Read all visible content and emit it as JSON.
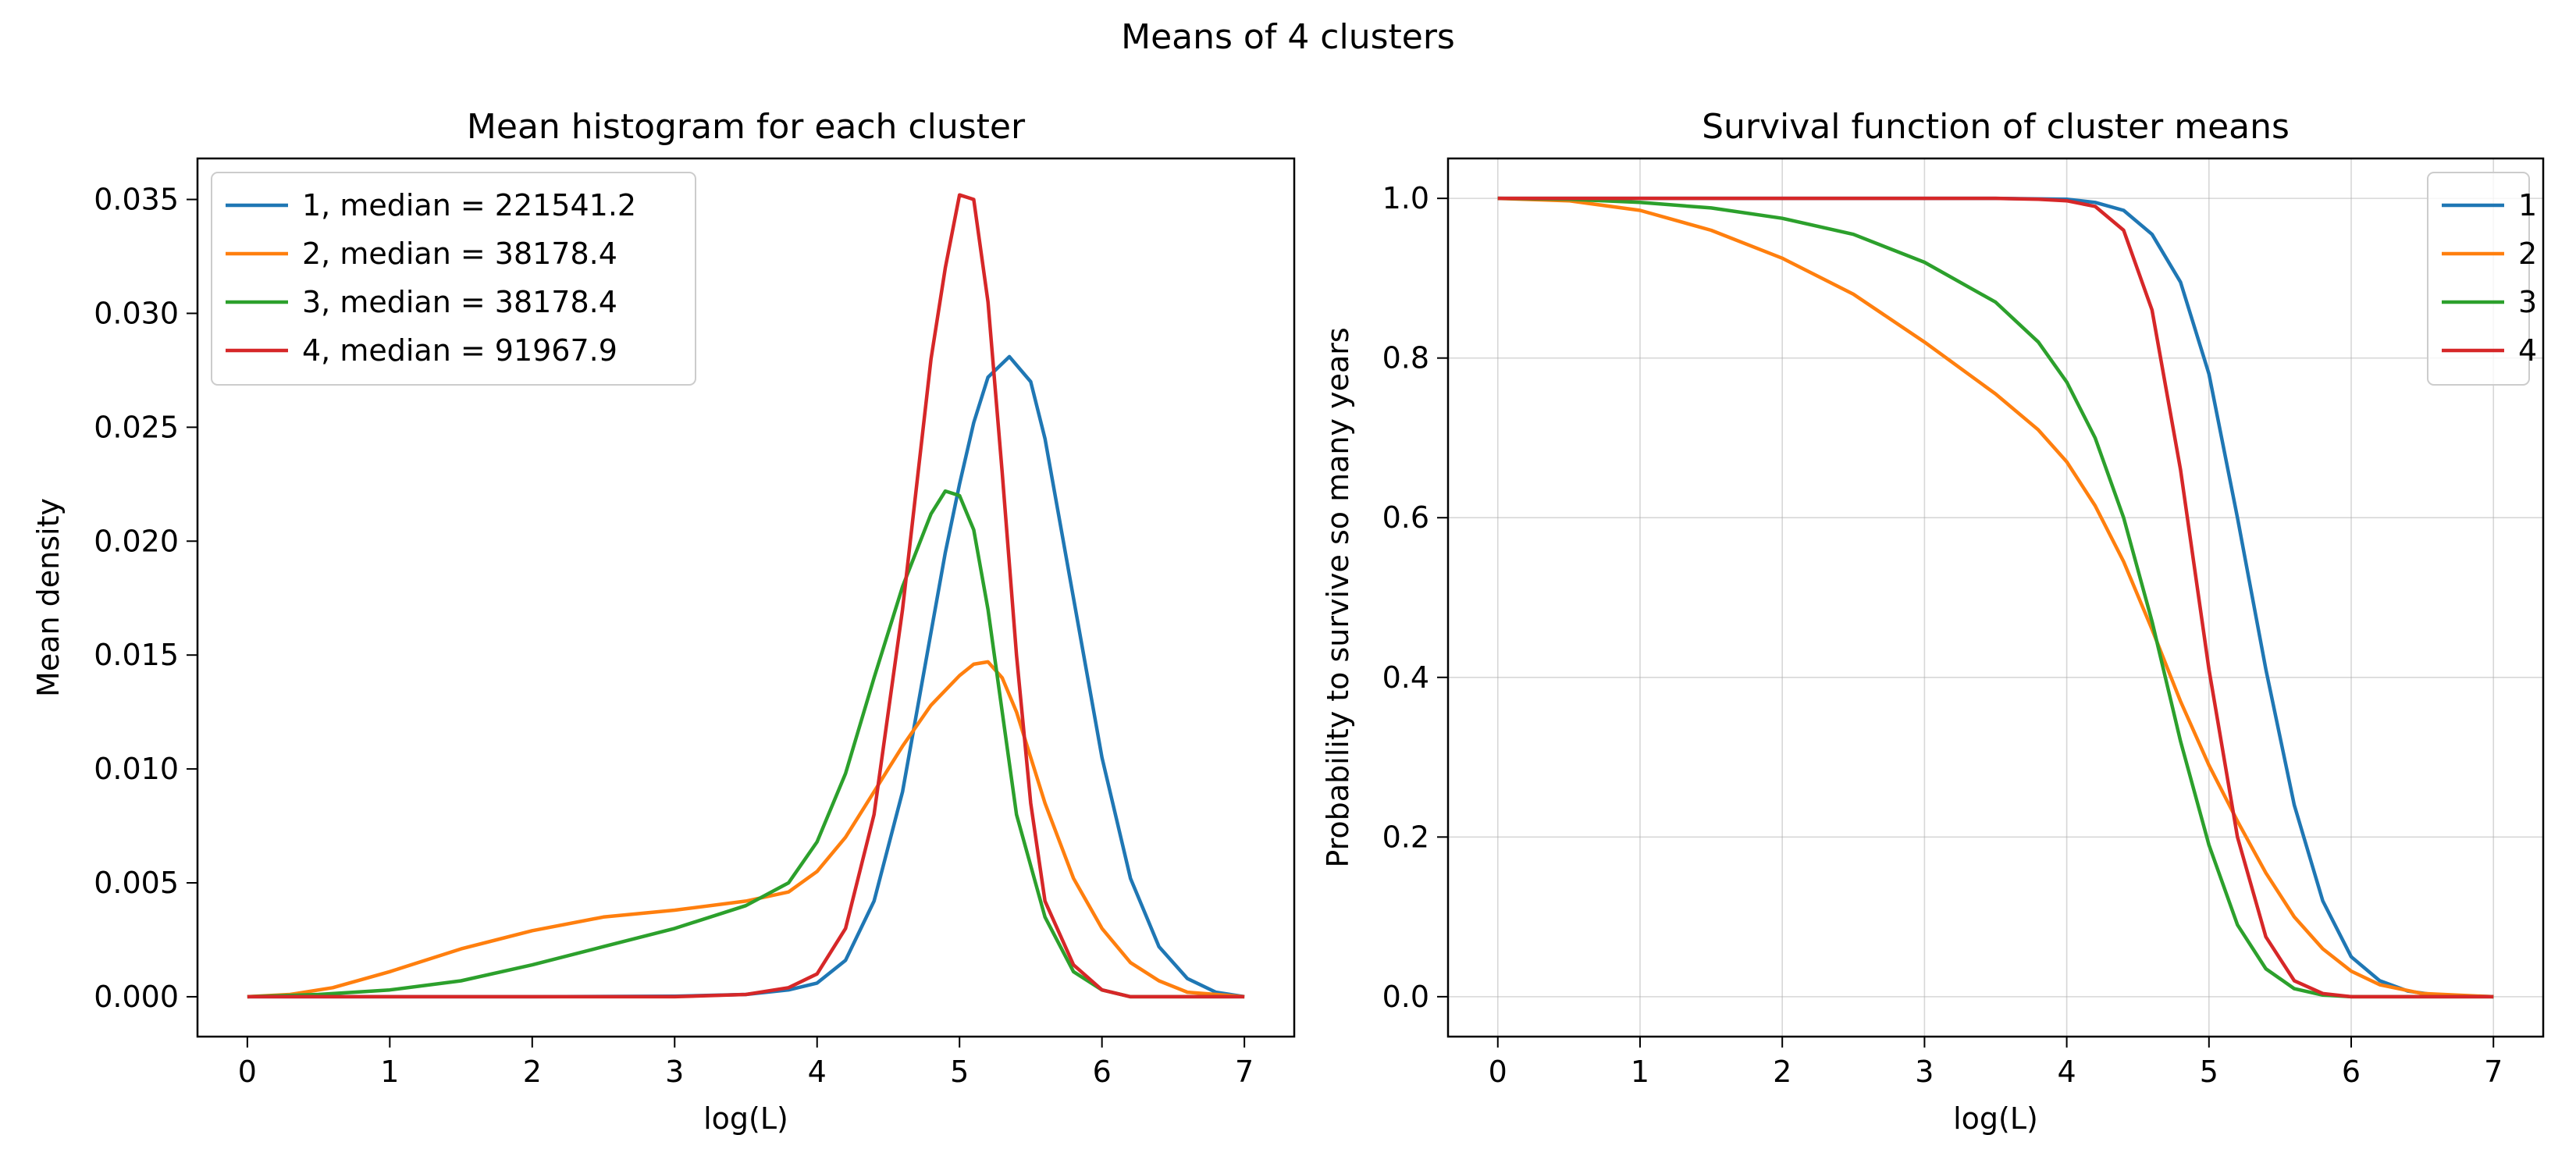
{
  "suptitle": "Means of 4 clusters",
  "colors": {
    "s1": "#1f77b4",
    "s2": "#ff7f0e",
    "s3": "#2ca02c",
    "s4": "#d62728"
  },
  "chart_data": [
    {
      "type": "line",
      "title": "Mean histogram for each cluster",
      "xlabel": "log(L)",
      "ylabel": "Mean density",
      "xlim": [
        -0.35,
        7.35
      ],
      "ylim": [
        -0.00175,
        0.0368
      ],
      "xticks": [
        0,
        1,
        2,
        3,
        4,
        5,
        6,
        7
      ],
      "yticks": [
        0.0,
        0.005,
        0.01,
        0.015,
        0.02,
        0.025,
        0.03,
        0.035
      ],
      "yticklabels": [
        "0.000",
        "0.005",
        "0.010",
        "0.015",
        "0.020",
        "0.025",
        "0.030",
        "0.035"
      ],
      "grid": false,
      "legend_position": "upper-left",
      "series": [
        {
          "name": "1, median = 221541.2",
          "color": "#1f77b4",
          "x": [
            0,
            1,
            2,
            3,
            3.5,
            3.8,
            4.0,
            4.2,
            4.4,
            4.6,
            4.8,
            4.9,
            5.0,
            5.1,
            5.2,
            5.35,
            5.5,
            5.6,
            5.8,
            6.0,
            6.2,
            6.4,
            6.6,
            6.8,
            7.0
          ],
          "y": [
            0,
            0,
            0,
            2e-05,
            0.0001,
            0.0003,
            0.0006,
            0.0016,
            0.0042,
            0.009,
            0.016,
            0.0195,
            0.0225,
            0.0252,
            0.0272,
            0.0281,
            0.027,
            0.0245,
            0.0175,
            0.0105,
            0.0052,
            0.0022,
            0.0008,
            0.0002,
            0
          ]
        },
        {
          "name": "2, median = 38178.4",
          "color": "#ff7f0e",
          "x": [
            0,
            0.3,
            0.6,
            1.0,
            1.5,
            2.0,
            2.5,
            3.0,
            3.5,
            3.8,
            4.0,
            4.2,
            4.4,
            4.6,
            4.8,
            5.0,
            5.1,
            5.2,
            5.3,
            5.4,
            5.6,
            5.8,
            6.0,
            6.2,
            6.4,
            6.6,
            7.0
          ],
          "y": [
            0,
            0.0001,
            0.0004,
            0.0011,
            0.0021,
            0.0029,
            0.0035,
            0.0038,
            0.0042,
            0.0046,
            0.0055,
            0.007,
            0.009,
            0.011,
            0.0128,
            0.0141,
            0.0146,
            0.0147,
            0.014,
            0.0125,
            0.0085,
            0.0052,
            0.003,
            0.0015,
            0.0007,
            0.0002,
            0
          ]
        },
        {
          "name": "3, median = 38178.4",
          "color": "#2ca02c",
          "x": [
            0,
            0.5,
            1.0,
            1.5,
            2.0,
            2.5,
            3.0,
            3.5,
            3.8,
            4.0,
            4.2,
            4.4,
            4.6,
            4.8,
            4.9,
            5.0,
            5.1,
            5.2,
            5.3,
            5.4,
            5.6,
            5.8,
            6.0,
            6.2,
            7.0
          ],
          "y": [
            0,
            0.0001,
            0.0003,
            0.0007,
            0.0014,
            0.0022,
            0.003,
            0.004,
            0.005,
            0.0068,
            0.0098,
            0.014,
            0.018,
            0.0212,
            0.0222,
            0.022,
            0.0205,
            0.017,
            0.0125,
            0.008,
            0.0035,
            0.0011,
            0.0003,
            0,
            0
          ]
        },
        {
          "name": "4, median = 91967.9",
          "color": "#d62728",
          "x": [
            0,
            1,
            2,
            3,
            3.5,
            3.8,
            4.0,
            4.2,
            4.4,
            4.6,
            4.8,
            4.9,
            5.0,
            5.1,
            5.2,
            5.3,
            5.4,
            5.5,
            5.6,
            5.8,
            6.0,
            6.2,
            7.0
          ],
          "y": [
            0,
            0,
            0,
            0,
            0.0001,
            0.0004,
            0.001,
            0.003,
            0.008,
            0.017,
            0.028,
            0.032,
            0.0352,
            0.035,
            0.0305,
            0.023,
            0.015,
            0.0085,
            0.0042,
            0.0014,
            0.0003,
            0,
            0
          ]
        }
      ]
    },
    {
      "type": "line",
      "title": "Survival function of cluster means",
      "xlabel": "log(L)",
      "ylabel": "Probability to survive so many years",
      "xlim": [
        -0.35,
        7.35
      ],
      "ylim": [
        -0.05,
        1.05
      ],
      "xticks": [
        0,
        1,
        2,
        3,
        4,
        5,
        6,
        7
      ],
      "yticks": [
        0.0,
        0.2,
        0.4,
        0.6,
        0.8,
        1.0
      ],
      "yticklabels": [
        "0.0",
        "0.2",
        "0.4",
        "0.6",
        "0.8",
        "1.0"
      ],
      "grid": true,
      "legend_position": "upper-right",
      "series": [
        {
          "name": "1",
          "color": "#1f77b4",
          "x": [
            0,
            1,
            2,
            3,
            3.5,
            4.0,
            4.2,
            4.4,
            4.6,
            4.8,
            5.0,
            5.2,
            5.4,
            5.6,
            5.8,
            6.0,
            6.2,
            6.4,
            6.6,
            7.0
          ],
          "y": [
            1,
            1,
            1,
            1,
            1,
            0.999,
            0.995,
            0.985,
            0.955,
            0.895,
            0.78,
            0.6,
            0.41,
            0.24,
            0.12,
            0.05,
            0.02,
            0.007,
            0.002,
            0
          ]
        },
        {
          "name": "2",
          "color": "#ff7f0e",
          "x": [
            0,
            0.5,
            1.0,
            1.5,
            2.0,
            2.5,
            3.0,
            3.5,
            3.8,
            4.0,
            4.2,
            4.4,
            4.6,
            4.8,
            5.0,
            5.2,
            5.4,
            5.6,
            5.8,
            6.0,
            6.2,
            6.5,
            7.0
          ],
          "y": [
            1,
            0.997,
            0.985,
            0.96,
            0.925,
            0.88,
            0.82,
            0.755,
            0.71,
            0.67,
            0.615,
            0.545,
            0.46,
            0.37,
            0.29,
            0.22,
            0.155,
            0.1,
            0.06,
            0.032,
            0.015,
            0.004,
            0
          ]
        },
        {
          "name": "3",
          "color": "#2ca02c",
          "x": [
            0,
            0.5,
            1.0,
            1.5,
            2.0,
            2.5,
            3.0,
            3.5,
            3.8,
            4.0,
            4.2,
            4.4,
            4.6,
            4.8,
            5.0,
            5.2,
            5.4,
            5.6,
            5.8,
            6.0,
            7.0
          ],
          "y": [
            1,
            0.999,
            0.995,
            0.988,
            0.975,
            0.955,
            0.92,
            0.87,
            0.82,
            0.77,
            0.7,
            0.6,
            0.47,
            0.32,
            0.19,
            0.09,
            0.035,
            0.01,
            0.002,
            0,
            0
          ]
        },
        {
          "name": "4",
          "color": "#d62728",
          "x": [
            0,
            1,
            2,
            3,
            3.5,
            3.8,
            4.0,
            4.2,
            4.4,
            4.6,
            4.8,
            5.0,
            5.2,
            5.4,
            5.6,
            5.8,
            6.0,
            7.0
          ],
          "y": [
            1,
            1,
            1,
            1,
            1,
            0.999,
            0.997,
            0.99,
            0.96,
            0.86,
            0.66,
            0.41,
            0.2,
            0.075,
            0.02,
            0.004,
            0,
            0
          ]
        }
      ]
    }
  ]
}
